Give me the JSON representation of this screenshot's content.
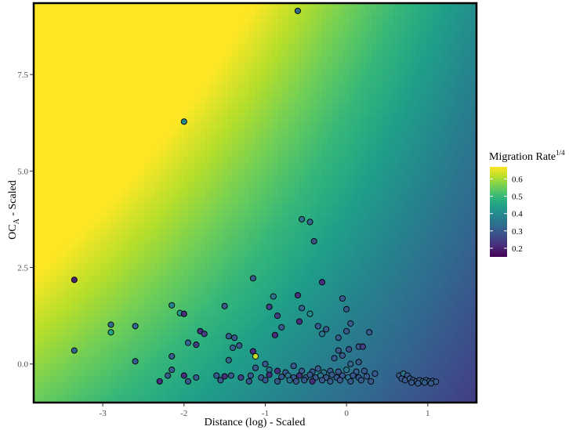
{
  "chart_data": {
    "type": "scatter",
    "background": "heatmap",
    "xlabel": "Distance (log) - Scaled",
    "ylabel_main": "OC",
    "ylabel_sub": "A",
    "ylabel_rest": " - Scaled",
    "xlim": [
      -3.85,
      1.6
    ],
    "ylim": [
      -1.0,
      9.35
    ],
    "x_ticks": [
      -3,
      -2,
      -1,
      0,
      1
    ],
    "x_tick_labels": [
      "-3",
      "-2",
      "-1",
      "0",
      "1"
    ],
    "y_ticks": [
      0.0,
      2.5,
      5.0,
      7.5
    ],
    "y_tick_labels": [
      "0.0",
      "2.5",
      "5.0",
      "7.5"
    ],
    "legend": {
      "title_main": "Migration Rate",
      "title_sup": "1/4",
      "placement": "right",
      "range": [
        0.15,
        0.67
      ],
      "ticks": [
        0.2,
        0.3,
        0.4,
        0.5,
        0.6
      ],
      "tick_labels": [
        "0.2",
        "0.3",
        "0.4",
        "0.5",
        "0.6"
      ]
    },
    "colormap": [
      "#440154",
      "#482878",
      "#3e4989",
      "#31688e",
      "#26828e",
      "#1f9e89",
      "#35b779",
      "#6ece58",
      "#b5de2b",
      "#fde725"
    ],
    "surface": {
      "intercept": 0.355,
      "x_coef": -0.06,
      "y_coef": 0.022,
      "xy_coef": -0.004
    },
    "points": [
      {
        "x": -0.6,
        "y": 9.15,
        "v": 0.33
      },
      {
        "x": -2.0,
        "y": 6.28,
        "v": 0.4
      },
      {
        "x": -0.55,
        "y": 3.75,
        "v": 0.35
      },
      {
        "x": -0.45,
        "y": 3.68,
        "v": 0.32
      },
      {
        "x": -0.4,
        "y": 3.18,
        "v": 0.28
      },
      {
        "x": -3.35,
        "y": 2.18,
        "v": 0.2
      },
      {
        "x": -1.15,
        "y": 2.22,
        "v": 0.3
      },
      {
        "x": -0.3,
        "y": 2.12,
        "v": 0.22
      },
      {
        "x": -0.6,
        "y": 1.78,
        "v": 0.22
      },
      {
        "x": -0.9,
        "y": 1.75,
        "v": 0.35
      },
      {
        "x": -0.05,
        "y": 1.7,
        "v": 0.3
      },
      {
        "x": -2.15,
        "y": 1.52,
        "v": 0.38
      },
      {
        "x": -1.5,
        "y": 1.5,
        "v": 0.3
      },
      {
        "x": -0.95,
        "y": 1.48,
        "v": 0.25
      },
      {
        "x": -0.55,
        "y": 1.45,
        "v": 0.32
      },
      {
        "x": 0.0,
        "y": 1.42,
        "v": 0.3
      },
      {
        "x": -2.05,
        "y": 1.32,
        "v": 0.42
      },
      {
        "x": -2.0,
        "y": 1.3,
        "v": 0.22
      },
      {
        "x": -0.45,
        "y": 1.3,
        "v": 0.4
      },
      {
        "x": -0.85,
        "y": 1.25,
        "v": 0.25
      },
      {
        "x": -0.58,
        "y": 1.1,
        "v": 0.22
      },
      {
        "x": 0.05,
        "y": 1.05,
        "v": 0.3
      },
      {
        "x": -2.9,
        "y": 1.02,
        "v": 0.33
      },
      {
        "x": -2.6,
        "y": 0.98,
        "v": 0.32
      },
      {
        "x": -0.35,
        "y": 0.98,
        "v": 0.3
      },
      {
        "x": -0.8,
        "y": 0.95,
        "v": 0.3
      },
      {
        "x": -0.25,
        "y": 0.9,
        "v": 0.3
      },
      {
        "x": -1.8,
        "y": 0.85,
        "v": 0.22
      },
      {
        "x": -2.9,
        "y": 0.82,
        "v": 0.45
      },
      {
        "x": 0.0,
        "y": 0.85,
        "v": 0.3
      },
      {
        "x": 0.28,
        "y": 0.82,
        "v": 0.3
      },
      {
        "x": -1.75,
        "y": 0.78,
        "v": 0.25
      },
      {
        "x": -0.3,
        "y": 0.78,
        "v": 0.35
      },
      {
        "x": -0.88,
        "y": 0.75,
        "v": 0.22
      },
      {
        "x": -1.45,
        "y": 0.72,
        "v": 0.3
      },
      {
        "x": -1.38,
        "y": 0.68,
        "v": 0.3
      },
      {
        "x": -0.1,
        "y": 0.68,
        "v": 0.3
      },
      {
        "x": -1.95,
        "y": 0.55,
        "v": 0.32
      },
      {
        "x": -1.85,
        "y": 0.5,
        "v": 0.25
      },
      {
        "x": -1.32,
        "y": 0.48,
        "v": 0.3
      },
      {
        "x": -1.4,
        "y": 0.42,
        "v": 0.32
      },
      {
        "x": -0.1,
        "y": 0.35,
        "v": 0.3
      },
      {
        "x": 0.03,
        "y": 0.38,
        "v": 0.28
      },
      {
        "x": -3.35,
        "y": 0.35,
        "v": 0.32
      },
      {
        "x": -1.15,
        "y": 0.33,
        "v": 0.22
      },
      {
        "x": 0.15,
        "y": 0.45,
        "v": 0.3
      },
      {
        "x": -2.15,
        "y": 0.2,
        "v": 0.3
      },
      {
        "x": -1.12,
        "y": 0.2,
        "v": 0.62
      },
      {
        "x": -0.05,
        "y": 0.22,
        "v": 0.3
      },
      {
        "x": 0.2,
        "y": 0.45,
        "v": 0.25
      },
      {
        "x": -2.6,
        "y": 0.07,
        "v": 0.3
      },
      {
        "x": -1.45,
        "y": 0.1,
        "v": 0.32
      },
      {
        "x": -0.15,
        "y": 0.15,
        "v": 0.3
      },
      {
        "x": 0.15,
        "y": 0.05,
        "v": 0.3
      },
      {
        "x": 0.05,
        "y": 0.0,
        "v": 0.32
      },
      {
        "x": -1.0,
        "y": 0.0,
        "v": 0.3
      },
      {
        "x": -0.65,
        "y": -0.05,
        "v": 0.3
      },
      {
        "x": -2.15,
        "y": -0.15,
        "v": 0.3
      },
      {
        "x": -1.12,
        "y": -0.1,
        "v": 0.3
      },
      {
        "x": -0.95,
        "y": -0.15,
        "v": 0.35
      },
      {
        "x": -0.85,
        "y": -0.18,
        "v": 0.22
      },
      {
        "x": -0.75,
        "y": -0.22,
        "v": 0.3
      },
      {
        "x": -0.55,
        "y": -0.18,
        "v": 0.3
      },
      {
        "x": -0.42,
        "y": -0.2,
        "v": 0.3
      },
      {
        "x": -0.35,
        "y": -0.12,
        "v": 0.3
      },
      {
        "x": -0.28,
        "y": -0.22,
        "v": 0.35
      },
      {
        "x": -0.2,
        "y": -0.18,
        "v": 0.3
      },
      {
        "x": -0.1,
        "y": -0.2,
        "v": 0.3
      },
      {
        "x": 0.0,
        "y": -0.15,
        "v": 0.36
      },
      {
        "x": 0.12,
        "y": -0.2,
        "v": 0.3
      },
      {
        "x": 0.22,
        "y": -0.18,
        "v": 0.3
      },
      {
        "x": 0.35,
        "y": -0.25,
        "v": 0.3
      },
      {
        "x": -2.2,
        "y": -0.3,
        "v": 0.3
      },
      {
        "x": -2.0,
        "y": -0.3,
        "v": 0.22
      },
      {
        "x": -1.85,
        "y": -0.35,
        "v": 0.3
      },
      {
        "x": -1.6,
        "y": -0.3,
        "v": 0.3
      },
      {
        "x": -1.5,
        "y": -0.32,
        "v": 0.22
      },
      {
        "x": -1.42,
        "y": -0.3,
        "v": 0.3
      },
      {
        "x": -1.3,
        "y": -0.35,
        "v": 0.25
      },
      {
        "x": -1.18,
        "y": -0.3,
        "v": 0.3
      },
      {
        "x": -1.05,
        "y": -0.35,
        "v": 0.3
      },
      {
        "x": -0.95,
        "y": -0.28,
        "v": 0.22
      },
      {
        "x": -0.8,
        "y": -0.33,
        "v": 0.3
      },
      {
        "x": -0.72,
        "y": -0.3,
        "v": 0.35
      },
      {
        "x": -0.65,
        "y": -0.35,
        "v": 0.3
      },
      {
        "x": -0.58,
        "y": -0.3,
        "v": 0.22
      },
      {
        "x": -0.5,
        "y": -0.35,
        "v": 0.3
      },
      {
        "x": -0.45,
        "y": -0.28,
        "v": 0.3
      },
      {
        "x": -0.38,
        "y": -0.35,
        "v": 0.3
      },
      {
        "x": -0.32,
        "y": -0.3,
        "v": 0.35
      },
      {
        "x": -0.25,
        "y": -0.35,
        "v": 0.3
      },
      {
        "x": -0.18,
        "y": -0.28,
        "v": 0.3
      },
      {
        "x": -0.12,
        "y": -0.35,
        "v": 0.3
      },
      {
        "x": -0.05,
        "y": -0.3,
        "v": 0.3
      },
      {
        "x": 0.02,
        "y": -0.35,
        "v": 0.35
      },
      {
        "x": 0.08,
        "y": -0.3,
        "v": 0.3
      },
      {
        "x": 0.15,
        "y": -0.35,
        "v": 0.3
      },
      {
        "x": 0.25,
        "y": -0.32,
        "v": 0.3
      },
      {
        "x": -2.3,
        "y": -0.45,
        "v": 0.22
      },
      {
        "x": -1.95,
        "y": -0.45,
        "v": 0.3
      },
      {
        "x": -1.55,
        "y": -0.42,
        "v": 0.3
      },
      {
        "x": -1.2,
        "y": -0.45,
        "v": 0.3
      },
      {
        "x": -1.0,
        "y": -0.42,
        "v": 0.3
      },
      {
        "x": -0.85,
        "y": -0.45,
        "v": 0.3
      },
      {
        "x": -0.7,
        "y": -0.42,
        "v": 0.35
      },
      {
        "x": -0.62,
        "y": -0.45,
        "v": 0.3
      },
      {
        "x": -0.52,
        "y": -0.42,
        "v": 0.3
      },
      {
        "x": -0.42,
        "y": -0.45,
        "v": 0.22
      },
      {
        "x": -0.3,
        "y": -0.42,
        "v": 0.3
      },
      {
        "x": -0.2,
        "y": -0.45,
        "v": 0.3
      },
      {
        "x": -0.08,
        "y": -0.42,
        "v": 0.3
      },
      {
        "x": 0.05,
        "y": -0.45,
        "v": 0.3
      },
      {
        "x": 0.18,
        "y": -0.42,
        "v": 0.3
      },
      {
        "x": 0.3,
        "y": -0.45,
        "v": 0.3
      },
      {
        "x": 0.65,
        "y": -0.3,
        "v": 0.3
      },
      {
        "x": 0.7,
        "y": -0.25,
        "v": 0.35
      },
      {
        "x": 0.75,
        "y": -0.3,
        "v": 0.3
      },
      {
        "x": 0.68,
        "y": -0.38,
        "v": 0.3
      },
      {
        "x": 0.72,
        "y": -0.42,
        "v": 0.3
      },
      {
        "x": 0.78,
        "y": -0.38,
        "v": 0.3
      },
      {
        "x": 0.82,
        "y": -0.42,
        "v": 0.3
      },
      {
        "x": 0.86,
        "y": -0.45,
        "v": 0.3
      },
      {
        "x": 0.9,
        "y": -0.42,
        "v": 0.3
      },
      {
        "x": 0.94,
        "y": -0.45,
        "v": 0.35
      },
      {
        "x": 0.98,
        "y": -0.42,
        "v": 0.3
      },
      {
        "x": 1.02,
        "y": -0.45,
        "v": 0.3
      },
      {
        "x": 1.06,
        "y": -0.44,
        "v": 0.3
      },
      {
        "x": 1.1,
        "y": -0.46,
        "v": 0.3
      },
      {
        "x": 0.8,
        "y": -0.48,
        "v": 0.3
      },
      {
        "x": 0.88,
        "y": -0.5,
        "v": 0.3
      },
      {
        "x": 0.96,
        "y": -0.48,
        "v": 0.3
      },
      {
        "x": 1.04,
        "y": -0.5,
        "v": 0.3
      }
    ]
  }
}
